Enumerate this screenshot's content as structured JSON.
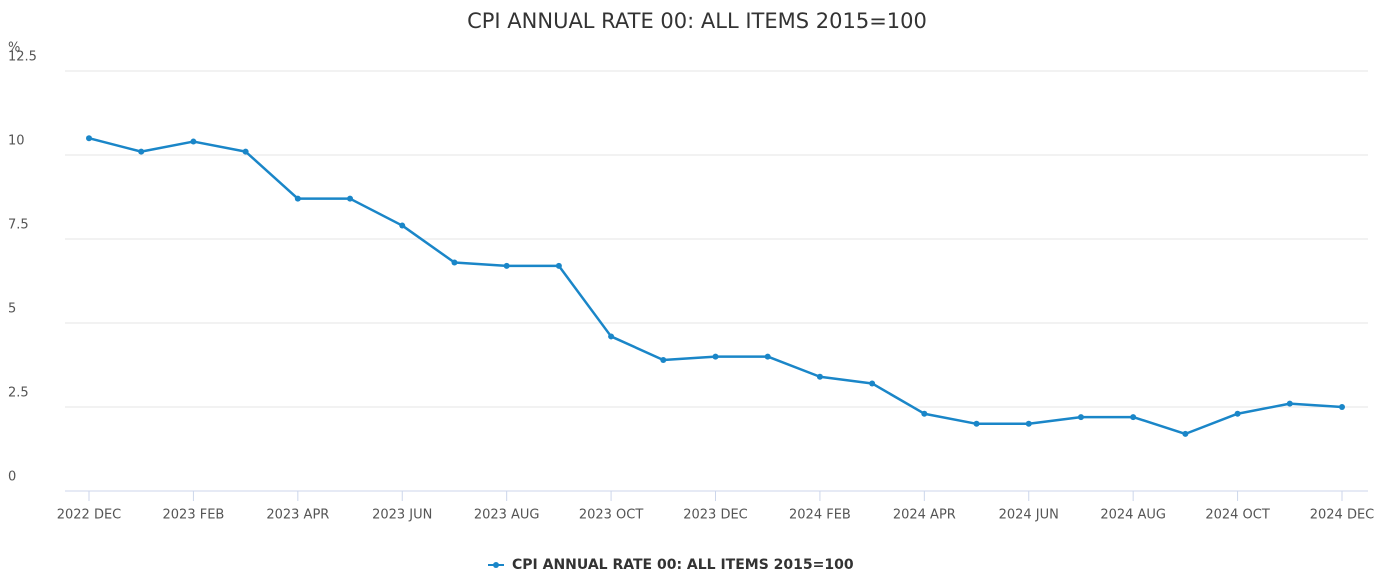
{
  "chart_data": {
    "type": "line",
    "title": "CPI ANNUAL RATE 00: ALL ITEMS 2015=100",
    "y_label": "%",
    "categories": [
      "2022 DEC",
      null,
      "2023 FEB",
      null,
      "2023 APR",
      null,
      "2023 JUN",
      null,
      "2023 AUG",
      null,
      "2023 OCT",
      null,
      "2023 DEC",
      null,
      "2024 FEB",
      null,
      "2024 APR",
      null,
      "2024 JUN",
      null,
      "2024 AUG",
      null,
      "2024 OCT",
      null,
      "2024 DEC"
    ],
    "series": [
      {
        "name": "CPI ANNUAL RATE 00: ALL ITEMS 2015=100",
        "color": "#1a86c8",
        "values": [
          10.5,
          10.1,
          10.4,
          10.1,
          8.7,
          8.7,
          7.9,
          6.8,
          6.7,
          6.7,
          4.6,
          3.9,
          4.0,
          4.0,
          3.4,
          3.2,
          2.3,
          2.0,
          2.0,
          2.2,
          2.2,
          1.7,
          2.3,
          2.6,
          2.5
        ]
      }
    ],
    "ylim": [
      0,
      12.5
    ],
    "yticks": [
      0,
      2.5,
      5,
      7.5,
      10,
      12.5
    ],
    "grid": true,
    "legend": "bottom"
  }
}
